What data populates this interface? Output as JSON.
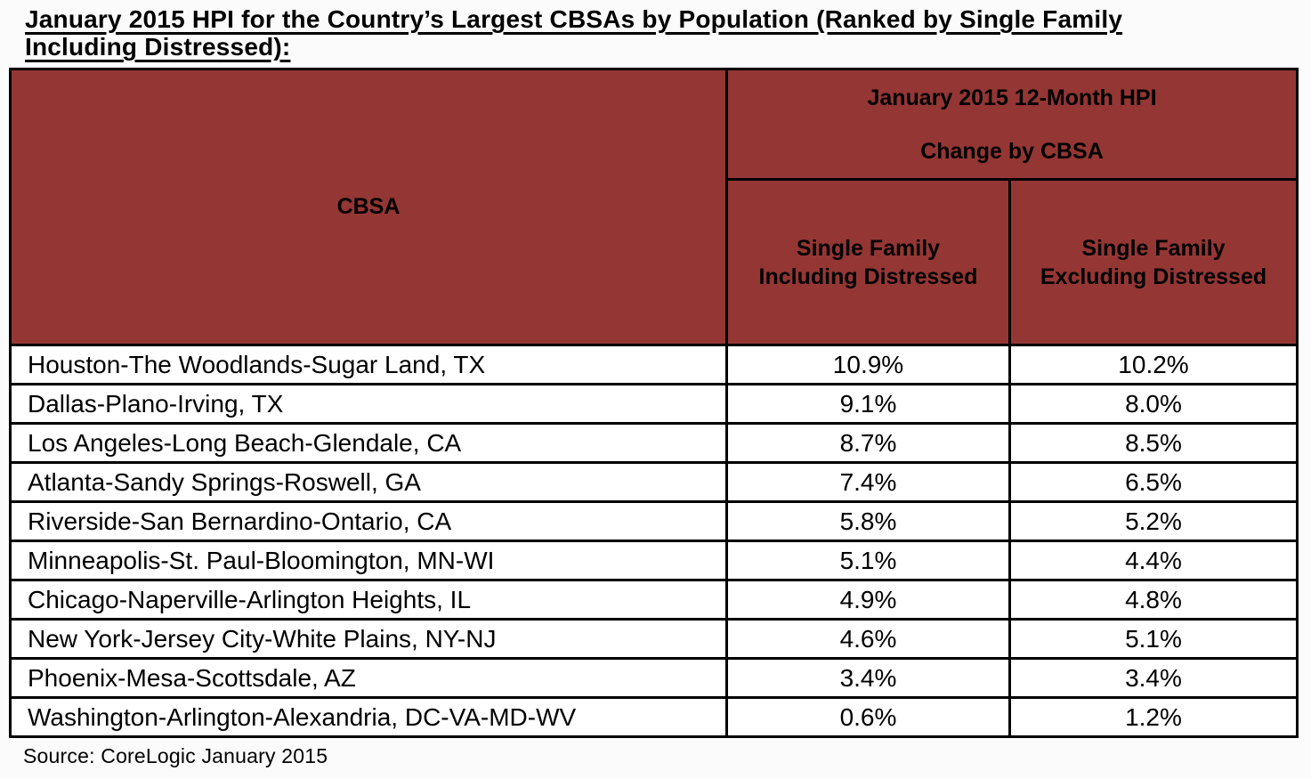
{
  "page": {
    "title_line1": "January 2015 HPI for the Country’s Largest CBSAs by Population (Ranked by Single Family",
    "title_line2": "Including Distressed):",
    "source": "Source: CoreLogic January 2015"
  },
  "table": {
    "cbsa_header": "CBSA",
    "group_header": "January 2015 12-Month HPI\n\nChange by CBSA",
    "including_header": "Single Family\nIncluding Distressed",
    "excluding_header": "Single Family\nExcluding Distressed"
  },
  "chart_data": {
    "type": "table",
    "title": "January 2015 HPI for the Country's Largest CBSAs by Population (Ranked by Single Family Including Distressed)",
    "columns": [
      "CBSA",
      "Single Family Including Distressed",
      "Single Family Excluding Distressed"
    ],
    "rows": [
      [
        "Houston-The Woodlands-Sugar Land, TX",
        "10.9%",
        "10.2%"
      ],
      [
        "Dallas-Plano-Irving, TX",
        "9.1%",
        "8.0%"
      ],
      [
        "Los Angeles-Long Beach-Glendale, CA",
        "8.7%",
        "8.5%"
      ],
      [
        "Atlanta-Sandy Springs-Roswell, GA",
        "7.4%",
        "6.5%"
      ],
      [
        "Riverside-San Bernardino-Ontario, CA",
        "5.8%",
        "5.2%"
      ],
      [
        "Minneapolis-St. Paul-Bloomington, MN-WI",
        "5.1%",
        "4.4%"
      ],
      [
        "Chicago-Naperville-Arlington Heights, IL",
        "4.9%",
        "4.8%"
      ],
      [
        "New York-Jersey City-White Plains, NY-NJ",
        "4.6%",
        "5.1%"
      ],
      [
        "Phoenix-Mesa-Scottsdale, AZ",
        "3.4%",
        "3.4%"
      ],
      [
        "Washington-Arlington-Alexandria, DC-VA-MD-WV",
        "0.6%",
        "1.2%"
      ]
    ],
    "source": "Source: CoreLogic January 2015"
  },
  "colors": {
    "header_bg": "#943634",
    "border": "#000000",
    "text": "#000000"
  }
}
